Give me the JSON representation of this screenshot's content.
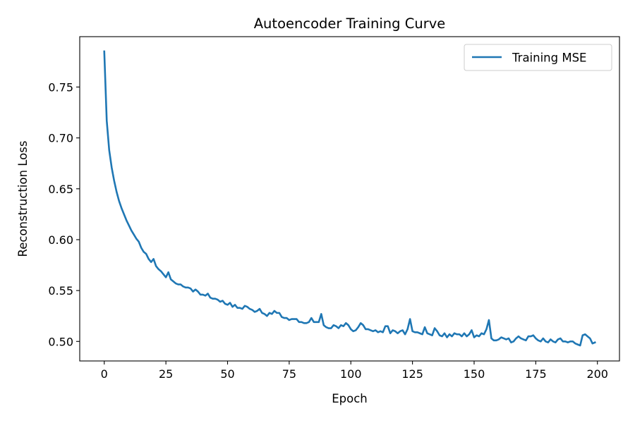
{
  "chart_data": {
    "type": "line",
    "title": "Autoencoder Training Curve",
    "xlabel": "Epoch",
    "ylabel": "Reconstruction Loss",
    "xlim": [
      -9.95,
      208.95
    ],
    "ylim": [
      0.4808,
      0.7995
    ],
    "xticks": [
      0,
      25,
      50,
      75,
      100,
      125,
      150,
      175,
      200
    ],
    "xtick_labels": [
      "0",
      "25",
      "50",
      "75",
      "100",
      "125",
      "150",
      "175",
      "200"
    ],
    "yticks": [
      0.5,
      0.55,
      0.6,
      0.65,
      0.7,
      0.75
    ],
    "ytick_labels": [
      "0.50",
      "0.55",
      "0.60",
      "0.65",
      "0.70",
      "0.75"
    ],
    "grid": false,
    "legend_position": "upper right",
    "series": [
      {
        "name": "Training MSE",
        "color": "#1f77b4",
        "x_start": 0,
        "x_step": 1,
        "values": [
          0.785,
          0.717,
          0.688,
          0.671,
          0.658,
          0.647,
          0.638,
          0.631,
          0.625,
          0.619,
          0.614,
          0.609,
          0.605,
          0.601,
          0.598,
          0.592,
          0.588,
          0.586,
          0.581,
          0.578,
          0.581,
          0.574,
          0.571,
          0.569,
          0.566,
          0.563,
          0.568,
          0.561,
          0.559,
          0.557,
          0.556,
          0.556,
          0.554,
          0.553,
          0.553,
          0.552,
          0.549,
          0.551,
          0.549,
          0.546,
          0.546,
          0.545,
          0.547,
          0.543,
          0.542,
          0.542,
          0.541,
          0.539,
          0.54,
          0.537,
          0.536,
          0.538,
          0.534,
          0.536,
          0.533,
          0.533,
          0.532,
          0.535,
          0.534,
          0.532,
          0.531,
          0.529,
          0.53,
          0.532,
          0.528,
          0.527,
          0.525,
          0.528,
          0.527,
          0.53,
          0.528,
          0.528,
          0.524,
          0.523,
          0.523,
          0.521,
          0.522,
          0.522,
          0.522,
          0.519,
          0.519,
          0.518,
          0.518,
          0.519,
          0.523,
          0.519,
          0.519,
          0.519,
          0.527,
          0.516,
          0.514,
          0.513,
          0.513,
          0.516,
          0.515,
          0.513,
          0.516,
          0.515,
          0.518,
          0.516,
          0.512,
          0.51,
          0.511,
          0.514,
          0.518,
          0.516,
          0.512,
          0.512,
          0.511,
          0.51,
          0.511,
          0.509,
          0.51,
          0.509,
          0.515,
          0.515,
          0.508,
          0.511,
          0.51,
          0.508,
          0.51,
          0.511,
          0.507,
          0.512,
          0.522,
          0.51,
          0.509,
          0.509,
          0.508,
          0.507,
          0.514,
          0.508,
          0.507,
          0.506,
          0.513,
          0.51,
          0.506,
          0.505,
          0.508,
          0.504,
          0.507,
          0.505,
          0.508,
          0.507,
          0.507,
          0.505,
          0.508,
          0.505,
          0.507,
          0.511,
          0.504,
          0.506,
          0.505,
          0.508,
          0.507,
          0.512,
          0.521,
          0.503,
          0.501,
          0.501,
          0.502,
          0.504,
          0.503,
          0.502,
          0.503,
          0.499,
          0.5,
          0.503,
          0.505,
          0.503,
          0.502,
          0.501,
          0.505,
          0.505,
          0.506,
          0.503,
          0.501,
          0.5,
          0.503,
          0.5,
          0.499,
          0.502,
          0.5,
          0.499,
          0.502,
          0.503,
          0.5,
          0.5,
          0.499,
          0.5,
          0.5,
          0.498,
          0.497,
          0.496,
          0.506,
          0.507,
          0.505,
          0.503,
          0.498,
          0.499
        ]
      }
    ]
  }
}
